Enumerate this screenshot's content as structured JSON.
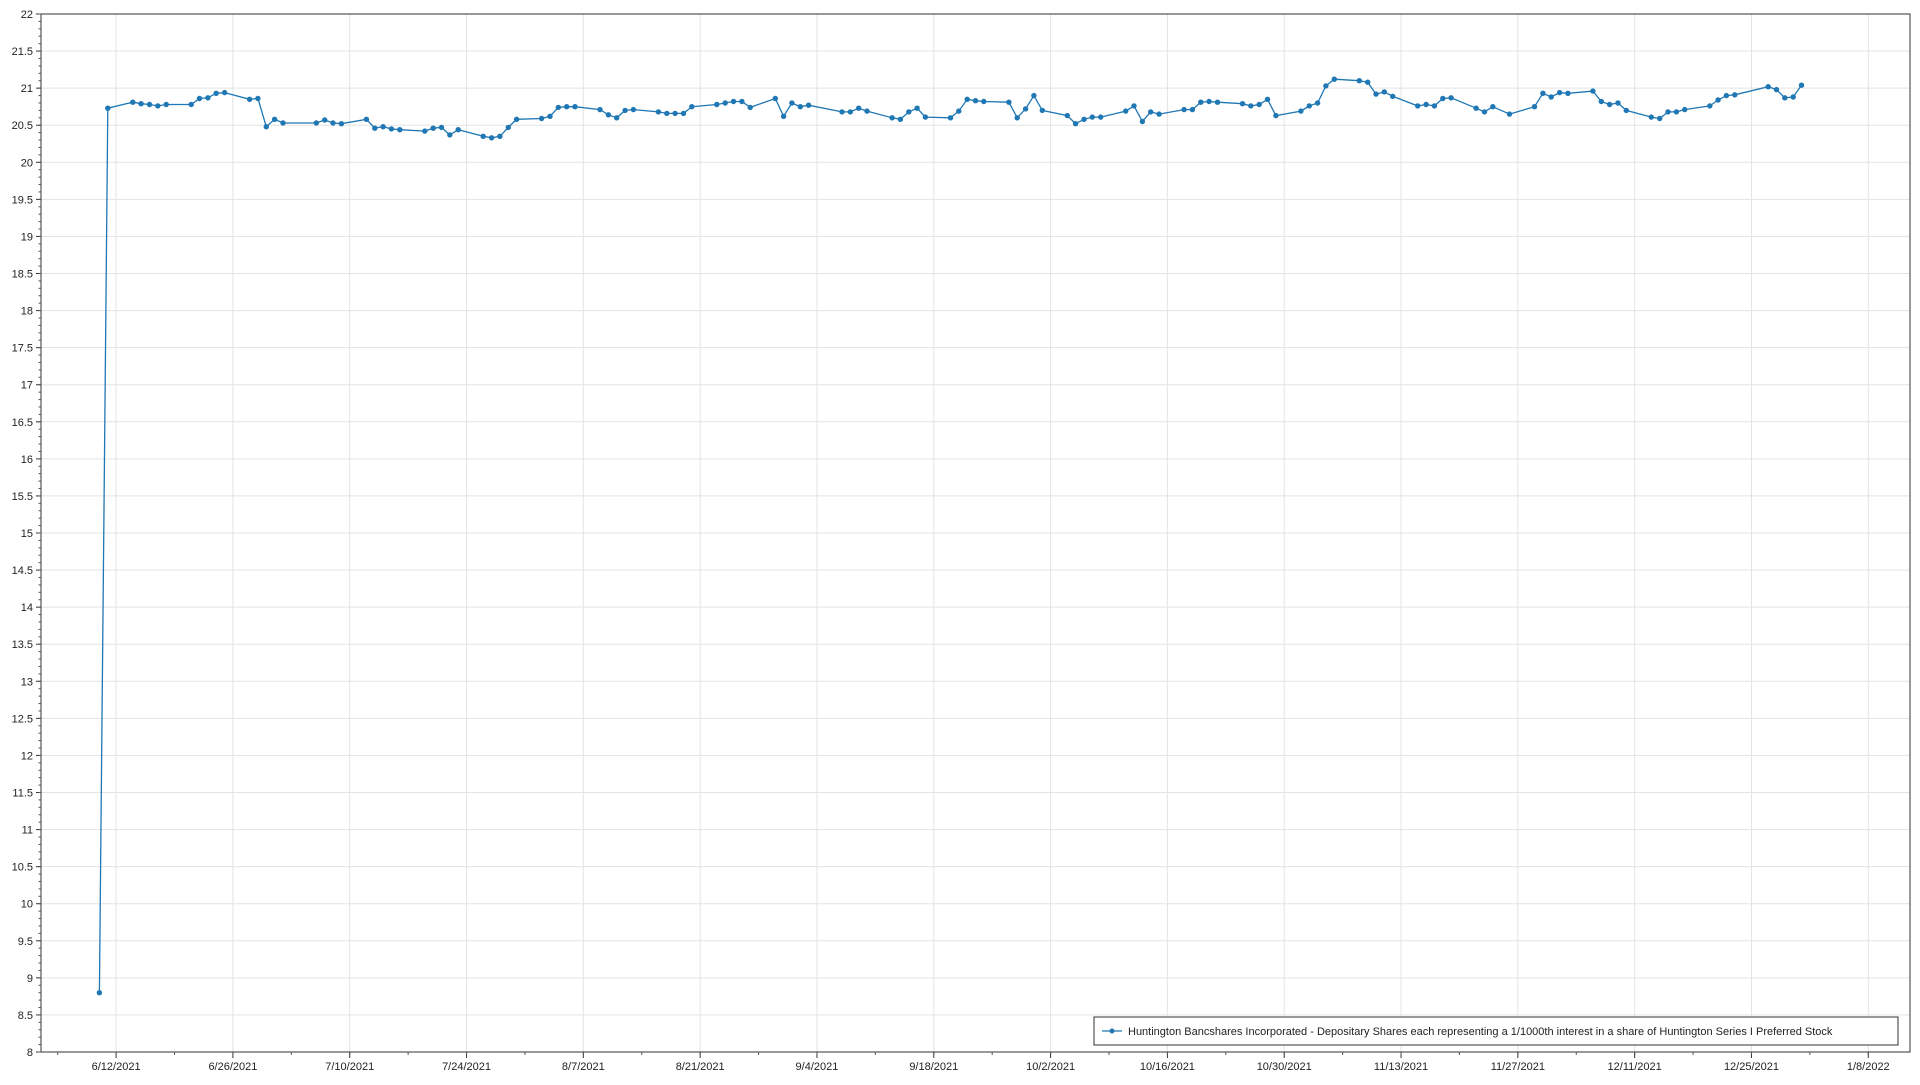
{
  "chart_data": {
    "type": "line",
    "title": "",
    "xlabel": "",
    "ylabel": "",
    "ylim": [
      8,
      22
    ],
    "yticks": [
      "8",
      "8.5",
      "9",
      "9.5",
      "10",
      "10.5",
      "11",
      "11.5",
      "12",
      "12.5",
      "13",
      "13.5",
      "14",
      "14.5",
      "15",
      "15.5",
      "16",
      "16.5",
      "17",
      "17.5",
      "18",
      "18.5",
      "19",
      "19.5",
      "20",
      "20.5",
      "21",
      "21.5",
      "22"
    ],
    "xtick_dates": [
      "2021-06-12",
      "2021-06-26",
      "2021-07-10",
      "2021-07-24",
      "2021-08-07",
      "2021-08-21",
      "2021-09-04",
      "2021-09-18",
      "2021-10-02",
      "2021-10-16",
      "2021-10-30",
      "2021-11-13",
      "2021-11-27",
      "2021-12-11",
      "2021-12-25",
      "2022-01-08"
    ],
    "xticks": [
      "6/12/2021",
      "6/26/2021",
      "7/10/2021",
      "7/24/2021",
      "8/7/2021",
      "8/21/2021",
      "9/4/2021",
      "9/18/2021",
      "10/2/2021",
      "10/16/2021",
      "10/30/2021",
      "11/13/2021",
      "11/27/2021",
      "12/11/2021",
      "12/25/2021",
      "1/8/2022"
    ],
    "xlim": [
      "2021-06-03",
      "2022-01-13"
    ],
    "grid": true,
    "legend_position": "bottom-right",
    "line_color": "#1f77b4",
    "series": [
      {
        "name": "Huntington Bancshares Incorporated - Depositary Shares each representing a 1/1000th interest in a share of Huntington Series I Preferred Stock",
        "x": [
          "2021-06-10",
          "2021-06-11",
          "2021-06-14",
          "2021-06-15",
          "2021-06-16",
          "2021-06-17",
          "2021-06-18",
          "2021-06-21",
          "2021-06-22",
          "2021-06-23",
          "2021-06-24",
          "2021-06-25",
          "2021-06-28",
          "2021-06-29",
          "2021-06-30",
          "2021-07-01",
          "2021-07-02",
          "2021-07-06",
          "2021-07-07",
          "2021-07-08",
          "2021-07-09",
          "2021-07-12",
          "2021-07-13",
          "2021-07-14",
          "2021-07-15",
          "2021-07-16",
          "2021-07-19",
          "2021-07-20",
          "2021-07-21",
          "2021-07-22",
          "2021-07-23",
          "2021-07-26",
          "2021-07-27",
          "2021-07-28",
          "2021-07-29",
          "2021-07-30",
          "2021-08-02",
          "2021-08-03",
          "2021-08-04",
          "2021-08-05",
          "2021-08-06",
          "2021-08-09",
          "2021-08-10",
          "2021-08-11",
          "2021-08-12",
          "2021-08-13",
          "2021-08-16",
          "2021-08-17",
          "2021-08-18",
          "2021-08-19",
          "2021-08-20",
          "2021-08-23",
          "2021-08-24",
          "2021-08-25",
          "2021-08-26",
          "2021-08-27",
          "2021-08-30",
          "2021-08-31",
          "2021-09-01",
          "2021-09-02",
          "2021-09-03",
          "2021-09-07",
          "2021-09-08",
          "2021-09-09",
          "2021-09-10",
          "2021-09-13",
          "2021-09-14",
          "2021-09-15",
          "2021-09-16",
          "2021-09-17",
          "2021-09-20",
          "2021-09-21",
          "2021-09-22",
          "2021-09-23",
          "2021-09-24",
          "2021-09-27",
          "2021-09-28",
          "2021-09-29",
          "2021-09-30",
          "2021-10-01",
          "2021-10-04",
          "2021-10-05",
          "2021-10-06",
          "2021-10-07",
          "2021-10-08",
          "2021-10-11",
          "2021-10-12",
          "2021-10-13",
          "2021-10-14",
          "2021-10-15",
          "2021-10-18",
          "2021-10-19",
          "2021-10-20",
          "2021-10-21",
          "2021-10-22",
          "2021-10-25",
          "2021-10-26",
          "2021-10-27",
          "2021-10-28",
          "2021-10-29",
          "2021-11-01",
          "2021-11-02",
          "2021-11-03",
          "2021-11-04",
          "2021-11-05",
          "2021-11-08",
          "2021-11-09",
          "2021-11-10",
          "2021-11-11",
          "2021-11-12",
          "2021-11-15",
          "2021-11-16",
          "2021-11-17",
          "2021-11-18",
          "2021-11-19",
          "2021-11-22",
          "2021-11-23",
          "2021-11-24",
          "2021-11-26",
          "2021-11-29",
          "2021-11-30",
          "2021-12-01",
          "2021-12-02",
          "2021-12-03",
          "2021-12-06",
          "2021-12-07",
          "2021-12-08",
          "2021-12-09",
          "2021-12-10",
          "2021-12-13",
          "2021-12-14",
          "2021-12-15",
          "2021-12-16",
          "2021-12-17",
          "2021-12-20",
          "2021-12-21",
          "2021-12-22",
          "2021-12-23",
          "2021-12-27",
          "2021-12-28",
          "2021-12-29",
          "2021-12-30",
          "2021-12-31"
        ],
        "y": [
          8.8,
          20.73,
          20.81,
          20.79,
          20.78,
          20.76,
          20.78,
          20.78,
          20.86,
          20.87,
          20.93,
          20.94,
          20.85,
          20.86,
          20.48,
          20.58,
          20.53,
          20.53,
          20.57,
          20.53,
          20.52,
          20.58,
          20.46,
          20.48,
          20.45,
          20.44,
          20.42,
          20.46,
          20.47,
          20.37,
          20.44,
          20.35,
          20.33,
          20.35,
          20.47,
          20.58,
          20.59,
          20.62,
          20.74,
          20.75,
          20.75,
          20.71,
          20.64,
          20.6,
          20.7,
          20.71,
          20.68,
          20.66,
          20.66,
          20.66,
          20.75,
          20.78,
          20.8,
          20.82,
          20.82,
          20.74,
          20.86,
          20.62,
          20.8,
          20.75,
          20.77,
          20.68,
          20.68,
          20.73,
          20.69,
          20.6,
          20.58,
          20.68,
          20.73,
          20.61,
          20.6,
          20.69,
          20.85,
          20.83,
          20.82,
          20.81,
          20.6,
          20.72,
          20.9,
          20.7,
          20.63,
          20.52,
          20.58,
          20.61,
          20.61,
          20.69,
          20.76,
          20.55,
          20.68,
          20.65,
          20.71,
          20.71,
          20.81,
          20.82,
          20.81,
          20.79,
          20.76,
          20.78,
          20.85,
          20.63,
          20.69,
          20.76,
          20.8,
          21.03,
          21.12,
          21.1,
          21.08,
          20.92,
          20.95,
          20.89,
          20.76,
          20.78,
          20.76,
          20.86,
          20.87,
          20.73,
          20.68,
          20.75,
          20.65,
          20.75,
          20.93,
          20.88,
          20.94,
          20.93,
          20.96,
          20.82,
          20.78,
          20.8,
          20.7,
          20.61,
          20.59,
          20.68,
          20.68,
          20.71,
          20.76,
          20.84,
          20.9,
          20.91,
          21.02,
          20.98,
          20.87,
          20.88,
          21.04
        ]
      }
    ]
  }
}
